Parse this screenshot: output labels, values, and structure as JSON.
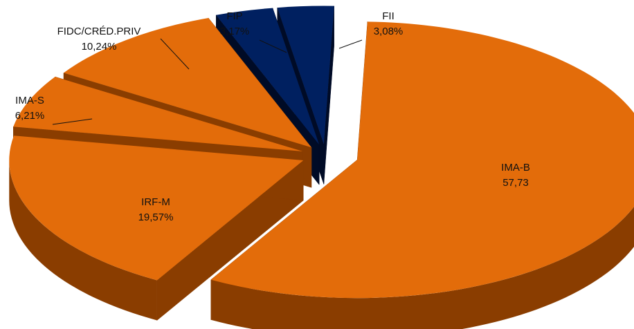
{
  "chart_data": {
    "type": "pie",
    "style": "3d-exploded",
    "slices": [
      {
        "label": "IMA-B",
        "value": 57.73,
        "value_text": "57,73",
        "color": "#e36c0a"
      },
      {
        "label": "IRF-M",
        "value": 19.57,
        "value_text": "19,57%",
        "color": "#e36c0a"
      },
      {
        "label": "IMA-S",
        "value": 6.21,
        "value_text": "6,21%",
        "color": "#e36c0a"
      },
      {
        "label": "FIDC/CRÉD.PRIV",
        "value": 10.24,
        "value_text": "10,24%",
        "color": "#e36c0a"
      },
      {
        "label": "FIP",
        "value": 3.17,
        "value_text": "3,17%",
        "color": "#002060"
      },
      {
        "label": "FII",
        "value": 3.08,
        "value_text": "3,08%",
        "color": "#002060"
      }
    ],
    "colors": {
      "side_orange": "#8a3d00",
      "side_navy": "#000b26"
    }
  }
}
